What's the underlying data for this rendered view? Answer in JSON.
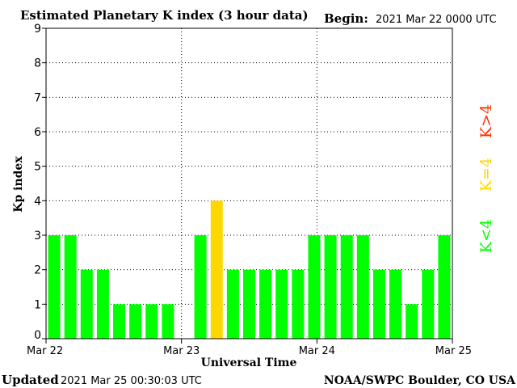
{
  "header": {
    "title": "Estimated Planetary K index (3 hour data)",
    "begin_label": "Begin:",
    "begin_value": "2021 Mar 22 0000 UTC"
  },
  "footer": {
    "updated_label": "Updated",
    "updated_value": "2021 Mar 25 00:30:03 UTC",
    "source": "NOAA/SWPC Boulder, CO USA"
  },
  "legend": {
    "high": "K>4",
    "equal": "K=4",
    "low": "K<4"
  },
  "colors": {
    "low": "#00ff00",
    "equal": "#ffd700",
    "high": "#ff3000"
  },
  "chart_data": {
    "type": "bar",
    "title": "Estimated Planetary K index (3 hour data)",
    "xlabel": "Universal Time",
    "ylabel": "Kp index",
    "ylim": [
      0,
      9
    ],
    "yticks": [
      "0",
      "1",
      "2",
      "3",
      "4",
      "5",
      "6",
      "7",
      "8",
      "9"
    ],
    "day_labels": [
      "Mar 22",
      "Mar 23",
      "Mar 24",
      "Mar 25"
    ],
    "interval_hours": 3,
    "grid": true,
    "values": [
      3,
      3,
      2,
      2,
      1,
      1,
      1,
      1,
      null,
      3,
      4,
      2,
      2,
      2,
      2,
      2,
      3,
      3,
      3,
      3,
      2,
      2,
      1,
      2,
      3
    ]
  }
}
